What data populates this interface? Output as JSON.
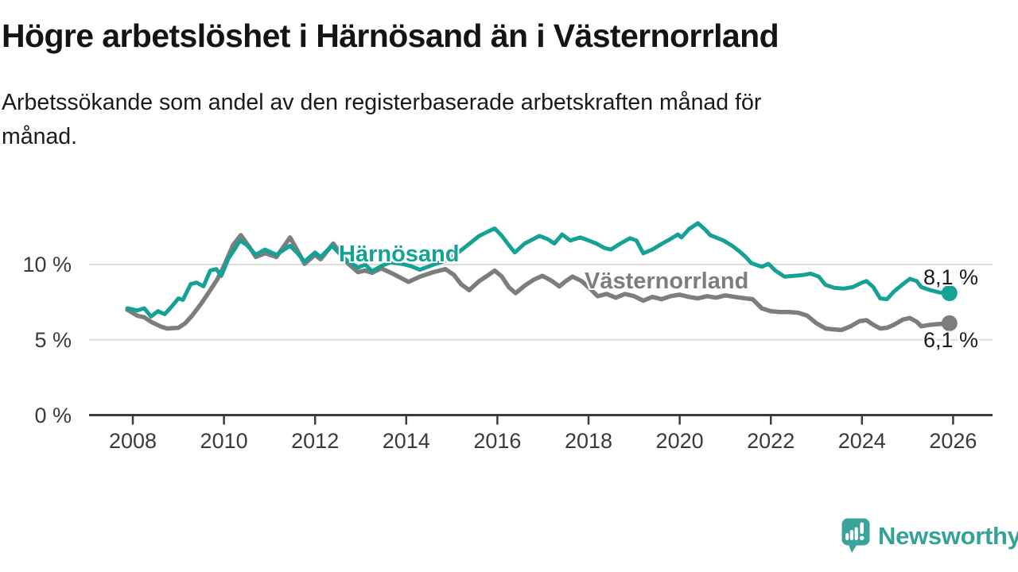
{
  "title": "Högre arbetslöshet i Härnösand än i Västernorrland",
  "subtitle_line1": "Arbetssökande som andel av den registerbaserade arbetskraften månad för",
  "subtitle_line2": "månad.",
  "branding": {
    "logo_text": "Newsworthy",
    "logo_color": "#35a19b"
  },
  "chart_data": {
    "type": "line",
    "unit": "%",
    "grid": "horizontal-only",
    "legend_position": "inline-labels",
    "x_range": [
      2007.8,
      2026.4
    ],
    "ylim": [
      0,
      13.8
    ],
    "x_ticks": [
      2008,
      2010,
      2012,
      2014,
      2016,
      2018,
      2020,
      2022,
      2024,
      2026
    ],
    "y_ticks": [
      {
        "value": 0,
        "label": "0 %"
      },
      {
        "value": 5,
        "label": "5 %"
      },
      {
        "value": 10,
        "label": "10 %"
      }
    ],
    "axis_color": "#3c3c3c",
    "gridline_color": "#dcdcdc",
    "series": [
      {
        "name": "Härnösand",
        "color": "#16a195",
        "end_label": "8,1 %",
        "end_value": 8.1,
        "points": [
          [
            2007.88,
            7.1
          ],
          [
            2008.1,
            6.95
          ],
          [
            2008.25,
            7.1
          ],
          [
            2008.4,
            6.55
          ],
          [
            2008.55,
            6.9
          ],
          [
            2008.7,
            6.7
          ],
          [
            2008.85,
            7.2
          ],
          [
            2009.0,
            7.75
          ],
          [
            2009.1,
            7.65
          ],
          [
            2009.27,
            8.7
          ],
          [
            2009.4,
            8.8
          ],
          [
            2009.55,
            8.55
          ],
          [
            2009.7,
            9.6
          ],
          [
            2009.83,
            9.7
          ],
          [
            2009.94,
            9.25
          ],
          [
            2010.1,
            10.4
          ],
          [
            2010.25,
            11.1
          ],
          [
            2010.35,
            11.6
          ],
          [
            2010.5,
            11.3
          ],
          [
            2010.7,
            10.65
          ],
          [
            2010.9,
            11.0
          ],
          [
            2011.15,
            10.65
          ],
          [
            2011.45,
            11.25
          ],
          [
            2011.6,
            10.8
          ],
          [
            2011.77,
            10.2
          ],
          [
            2012.0,
            10.8
          ],
          [
            2012.12,
            10.5
          ],
          [
            2012.37,
            11.25
          ],
          [
            2012.64,
            10.4
          ],
          [
            2012.94,
            9.8
          ],
          [
            2013.1,
            10.0
          ],
          [
            2013.25,
            9.55
          ],
          [
            2013.45,
            9.9
          ],
          [
            2013.65,
            10.15
          ],
          [
            2013.9,
            10.05
          ],
          [
            2014.1,
            9.9
          ],
          [
            2014.3,
            9.65
          ],
          [
            2014.6,
            10.0
          ],
          [
            2014.9,
            10.3
          ],
          [
            2015.1,
            10.7
          ],
          [
            2015.35,
            11.3
          ],
          [
            2015.6,
            11.9
          ],
          [
            2015.8,
            12.2
          ],
          [
            2015.94,
            12.4
          ],
          [
            2016.1,
            11.9
          ],
          [
            2016.25,
            11.3
          ],
          [
            2016.38,
            10.8
          ],
          [
            2016.6,
            11.4
          ],
          [
            2016.92,
            11.9
          ],
          [
            2017.1,
            11.7
          ],
          [
            2017.25,
            11.4
          ],
          [
            2017.42,
            12.0
          ],
          [
            2017.6,
            11.6
          ],
          [
            2017.82,
            11.8
          ],
          [
            2018.0,
            11.6
          ],
          [
            2018.17,
            11.4
          ],
          [
            2018.35,
            11.1
          ],
          [
            2018.49,
            11.0
          ],
          [
            2018.7,
            11.4
          ],
          [
            2018.91,
            11.75
          ],
          [
            2019.05,
            11.6
          ],
          [
            2019.2,
            10.75
          ],
          [
            2019.4,
            11.0
          ],
          [
            2019.62,
            11.4
          ],
          [
            2019.8,
            11.7
          ],
          [
            2019.96,
            12.0
          ],
          [
            2020.04,
            11.8
          ],
          [
            2020.2,
            12.35
          ],
          [
            2020.4,
            12.75
          ],
          [
            2020.55,
            12.35
          ],
          [
            2020.67,
            11.95
          ],
          [
            2020.96,
            11.6
          ],
          [
            2021.15,
            11.25
          ],
          [
            2021.3,
            10.9
          ],
          [
            2021.45,
            10.5
          ],
          [
            2021.57,
            10.1
          ],
          [
            2021.8,
            9.85
          ],
          [
            2021.95,
            10.05
          ],
          [
            2022.1,
            9.6
          ],
          [
            2022.3,
            9.2
          ],
          [
            2022.5,
            9.25
          ],
          [
            2022.7,
            9.3
          ],
          [
            2022.87,
            9.4
          ],
          [
            2023.05,
            9.2
          ],
          [
            2023.2,
            8.65
          ],
          [
            2023.4,
            8.45
          ],
          [
            2023.6,
            8.4
          ],
          [
            2023.8,
            8.5
          ],
          [
            2024.0,
            8.8
          ],
          [
            2024.1,
            8.9
          ],
          [
            2024.25,
            8.5
          ],
          [
            2024.4,
            7.75
          ],
          [
            2024.55,
            7.7
          ],
          [
            2024.7,
            8.2
          ],
          [
            2024.9,
            8.7
          ],
          [
            2025.05,
            9.05
          ],
          [
            2025.2,
            8.9
          ],
          [
            2025.3,
            8.5
          ],
          [
            2025.5,
            8.3
          ],
          [
            2025.7,
            8.15
          ],
          [
            2025.92,
            8.1
          ]
        ]
      },
      {
        "name": "Västernorrland",
        "color": "#7d7d7d",
        "end_label": "6,1 %",
        "end_value": 6.1,
        "points": [
          [
            2007.88,
            7.0
          ],
          [
            2008.1,
            6.6
          ],
          [
            2008.25,
            6.5
          ],
          [
            2008.4,
            6.2
          ],
          [
            2008.6,
            5.9
          ],
          [
            2008.75,
            5.75
          ],
          [
            2009.0,
            5.8
          ],
          [
            2009.15,
            6.1
          ],
          [
            2009.3,
            6.6
          ],
          [
            2009.5,
            7.4
          ],
          [
            2009.7,
            8.3
          ],
          [
            2009.85,
            9.0
          ],
          [
            2010.0,
            9.9
          ],
          [
            2010.2,
            11.3
          ],
          [
            2010.37,
            11.95
          ],
          [
            2010.55,
            11.2
          ],
          [
            2010.7,
            10.5
          ],
          [
            2010.9,
            10.75
          ],
          [
            2011.15,
            10.5
          ],
          [
            2011.45,
            11.8
          ],
          [
            2011.6,
            11.0
          ],
          [
            2011.77,
            10.05
          ],
          [
            2012.0,
            10.65
          ],
          [
            2012.12,
            10.35
          ],
          [
            2012.4,
            11.4
          ],
          [
            2012.73,
            10.05
          ],
          [
            2012.94,
            9.5
          ],
          [
            2013.1,
            9.6
          ],
          [
            2013.25,
            9.45
          ],
          [
            2013.45,
            9.75
          ],
          [
            2013.7,
            9.4
          ],
          [
            2014.05,
            8.85
          ],
          [
            2014.3,
            9.2
          ],
          [
            2014.6,
            9.5
          ],
          [
            2014.86,
            9.7
          ],
          [
            2015.05,
            9.3
          ],
          [
            2015.2,
            8.7
          ],
          [
            2015.38,
            8.3
          ],
          [
            2015.6,
            8.9
          ],
          [
            2015.8,
            9.3
          ],
          [
            2015.94,
            9.6
          ],
          [
            2016.1,
            9.2
          ],
          [
            2016.25,
            8.5
          ],
          [
            2016.4,
            8.1
          ],
          [
            2016.6,
            8.6
          ],
          [
            2016.8,
            9.0
          ],
          [
            2016.99,
            9.25
          ],
          [
            2017.2,
            8.9
          ],
          [
            2017.36,
            8.55
          ],
          [
            2017.5,
            8.9
          ],
          [
            2017.65,
            9.2
          ],
          [
            2017.85,
            8.9
          ],
          [
            2018.05,
            8.35
          ],
          [
            2018.2,
            7.9
          ],
          [
            2018.4,
            8.05
          ],
          [
            2018.6,
            7.8
          ],
          [
            2018.8,
            8.05
          ],
          [
            2019.0,
            7.9
          ],
          [
            2019.2,
            7.6
          ],
          [
            2019.4,
            7.85
          ],
          [
            2019.6,
            7.7
          ],
          [
            2019.8,
            7.9
          ],
          [
            2020.0,
            8.0
          ],
          [
            2020.2,
            7.85
          ],
          [
            2020.4,
            7.75
          ],
          [
            2020.6,
            7.9
          ],
          [
            2020.8,
            7.8
          ],
          [
            2021.0,
            7.95
          ],
          [
            2021.2,
            7.85
          ],
          [
            2021.45,
            7.75
          ],
          [
            2021.6,
            7.7
          ],
          [
            2021.8,
            7.1
          ],
          [
            2022.0,
            6.9
          ],
          [
            2022.2,
            6.85
          ],
          [
            2022.4,
            6.85
          ],
          [
            2022.6,
            6.8
          ],
          [
            2022.8,
            6.6
          ],
          [
            2023.0,
            6.1
          ],
          [
            2023.2,
            5.75
          ],
          [
            2023.35,
            5.7
          ],
          [
            2023.55,
            5.65
          ],
          [
            2023.75,
            5.9
          ],
          [
            2023.95,
            6.25
          ],
          [
            2024.1,
            6.3
          ],
          [
            2024.25,
            6.0
          ],
          [
            2024.4,
            5.75
          ],
          [
            2024.55,
            5.8
          ],
          [
            2024.7,
            6.0
          ],
          [
            2024.9,
            6.35
          ],
          [
            2025.05,
            6.45
          ],
          [
            2025.2,
            6.2
          ],
          [
            2025.3,
            5.9
          ],
          [
            2025.5,
            6.0
          ],
          [
            2025.7,
            6.05
          ],
          [
            2025.92,
            6.1
          ]
        ]
      }
    ]
  }
}
